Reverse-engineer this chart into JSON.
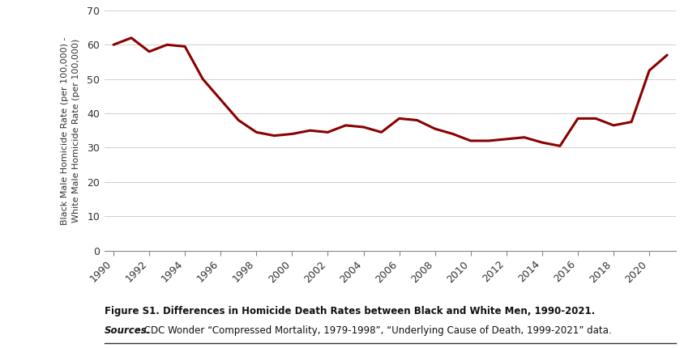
{
  "years": [
    1990,
    1991,
    1992,
    1993,
    1994,
    1995,
    1996,
    1997,
    1998,
    1999,
    2000,
    2001,
    2002,
    2003,
    2004,
    2005,
    2006,
    2007,
    2008,
    2009,
    2010,
    2011,
    2012,
    2013,
    2014,
    2015,
    2016,
    2017,
    2018,
    2019,
    2020,
    2021
  ],
  "values": [
    60.0,
    62.0,
    58.0,
    60.0,
    59.5,
    50.0,
    44.0,
    38.0,
    34.5,
    33.5,
    34.0,
    35.0,
    34.5,
    36.5,
    36.0,
    34.5,
    38.5,
    38.0,
    35.5,
    34.0,
    32.0,
    32.0,
    32.5,
    33.0,
    31.5,
    30.5,
    38.5,
    38.5,
    36.5,
    37.5,
    52.5,
    57.0
  ],
  "line_color": "#8B0000",
  "line_width": 2.2,
  "ylabel_line1": "Black Male Homicide Rate (per 100,000) -",
  "ylabel_line2": "White Male Homicide Rate (per 100,000)",
  "xlim": [
    1989.5,
    2021.5
  ],
  "ylim": [
    0,
    70
  ],
  "yticks": [
    0,
    10,
    20,
    30,
    40,
    50,
    60,
    70
  ],
  "xticks": [
    1990,
    1992,
    1994,
    1996,
    1998,
    2000,
    2002,
    2004,
    2006,
    2008,
    2010,
    2012,
    2014,
    2016,
    2018,
    2020
  ],
  "figure_title": "Figure S1. Differences in Homicide Death Rates between Black and White Men, 1990-2021.",
  "source_label": "Sources.",
  "source_rest": " CDC Wonder “Compressed Mortality, 1979-1998”, “Underlying Cause of Death, 1999-2021” data.",
  "bg_color": "#ffffff",
  "grid_color": "#d0d0d0",
  "tick_label_color": "#333333",
  "spine_color": "#888888"
}
